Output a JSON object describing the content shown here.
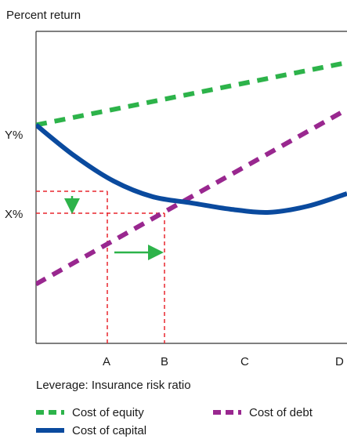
{
  "chart_data": {
    "type": "line",
    "ylabel": "Percent return",
    "xlabel": "Leverage: Insurance risk ratio",
    "x_ticks": [
      "A",
      "B",
      "C",
      "D"
    ],
    "y_ticks": [
      "Y%",
      "X%"
    ],
    "xlim": [
      0,
      4
    ],
    "ylim": [
      0,
      10
    ],
    "legend_placement": "bottom",
    "series": [
      {
        "name": "Cost of equity",
        "style": "dashed",
        "color": "#2db34a",
        "x": [
          0,
          4
        ],
        "y": [
          7.0,
          9.0
        ]
      },
      {
        "name": "Cost of debt",
        "style": "dashed",
        "color": "#99278f",
        "x": [
          0,
          4
        ],
        "y": [
          1.9,
          7.5
        ]
      },
      {
        "name": "Cost of capital",
        "style": "solid",
        "color": "#0a4a9e",
        "x": [
          0,
          0.5,
          1,
          1.5,
          2,
          2.5,
          3,
          3.5,
          4
        ],
        "y": [
          7.0,
          6.0,
          5.2,
          4.7,
          4.5,
          4.3,
          4.2,
          4.4,
          4.8
        ]
      }
    ],
    "annotations": [
      {
        "type": "dashed-guide",
        "color": "#e8272f",
        "from": "X%",
        "to": "B"
      },
      {
        "type": "dashed-guide",
        "color": "#e8272f",
        "from": "Y~5.2",
        "to": "A"
      },
      {
        "type": "arrow",
        "color": "#2db34a",
        "direction": "down"
      },
      {
        "type": "arrow",
        "color": "#2db34a",
        "direction": "right",
        "from": "A",
        "to": "B"
      }
    ]
  }
}
